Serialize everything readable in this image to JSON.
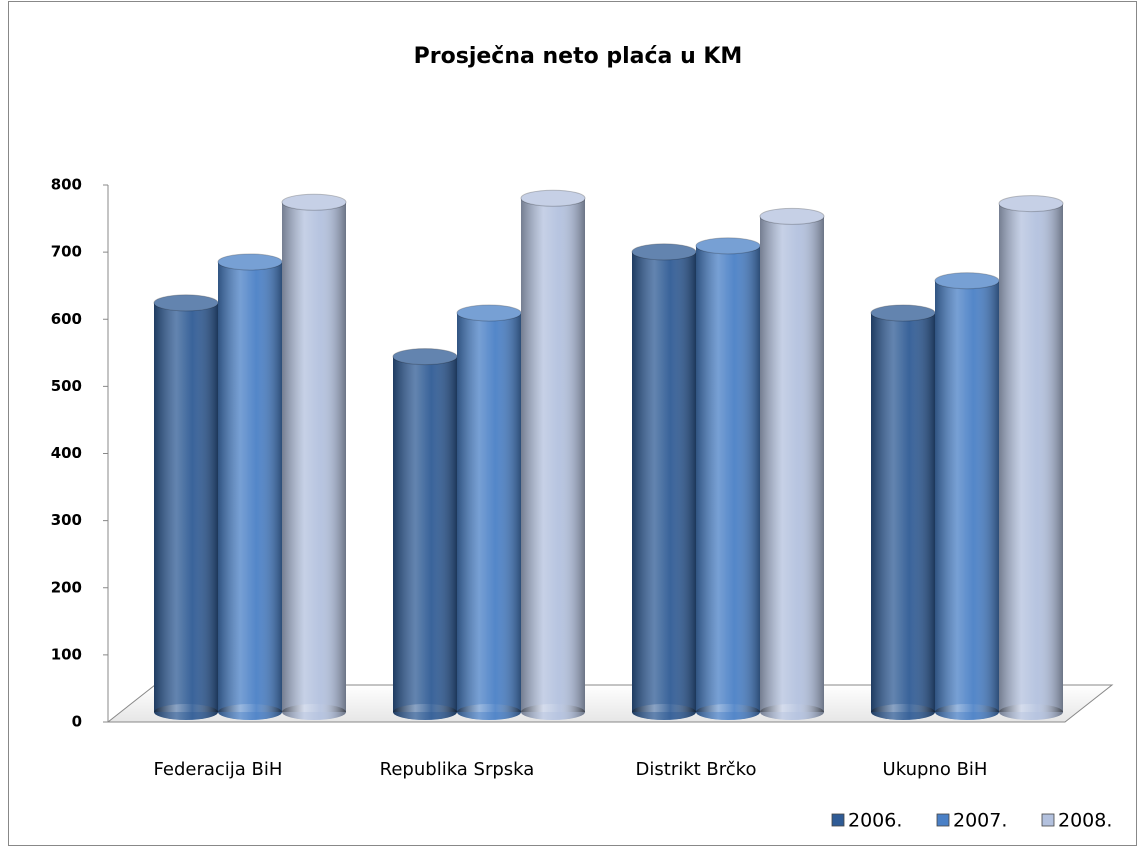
{
  "chart_data": {
    "type": "bar",
    "title": "Prosječna neto plaća u KM",
    "categories": [
      "Federacija BiH",
      "Republika Srpska",
      "Distrikt Brčko",
      "Ukupno BiH"
    ],
    "series": [
      {
        "name": "2006.",
        "color": "#2f5b95",
        "values": [
          602,
          522,
          678,
          587
        ]
      },
      {
        "name": "2007.",
        "color": "#4a80c6",
        "values": [
          663,
          587,
          687,
          635
        ]
      },
      {
        "name": "2008.",
        "color": "#b3c1de",
        "values": [
          752,
          758,
          731,
          750
        ]
      }
    ],
    "ylim": [
      0,
      800
    ],
    "yticks": [
      0,
      100,
      200,
      300,
      400,
      500,
      600,
      700,
      800
    ],
    "legend": "bottom-right"
  }
}
